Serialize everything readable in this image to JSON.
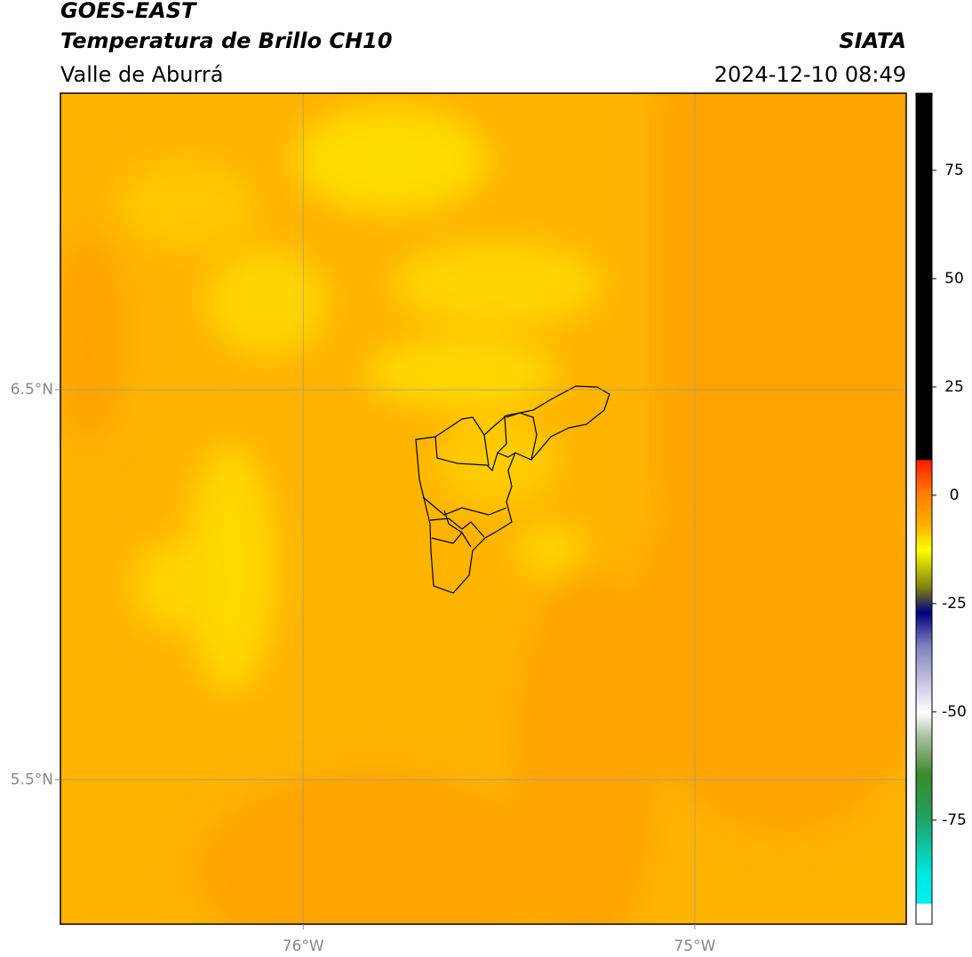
{
  "header": {
    "title": "GOES-EAST",
    "subtitle": "Temperatura de Brillo CH10",
    "region": "Valle de Aburrá",
    "source": "SIATA",
    "datetime": "2024-12-10 08:49"
  },
  "map": {
    "lon_range": [
      -76.62,
      -74.46
    ],
    "lat_range": [
      5.13,
      7.26
    ],
    "lon_ticks": [
      {
        "value": -76,
        "label": "76°W"
      },
      {
        "value": -75,
        "label": "75°W"
      }
    ],
    "lat_ticks": [
      {
        "value": 6.5,
        "label": "6.5°N"
      },
      {
        "value": 5.5,
        "label": "5.5°N"
      }
    ],
    "colorbar": {
      "range": [
        -99,
        92.8
      ],
      "ticks": [
        75,
        50,
        25,
        0,
        -25,
        -50,
        -75
      ]
    }
  }
}
